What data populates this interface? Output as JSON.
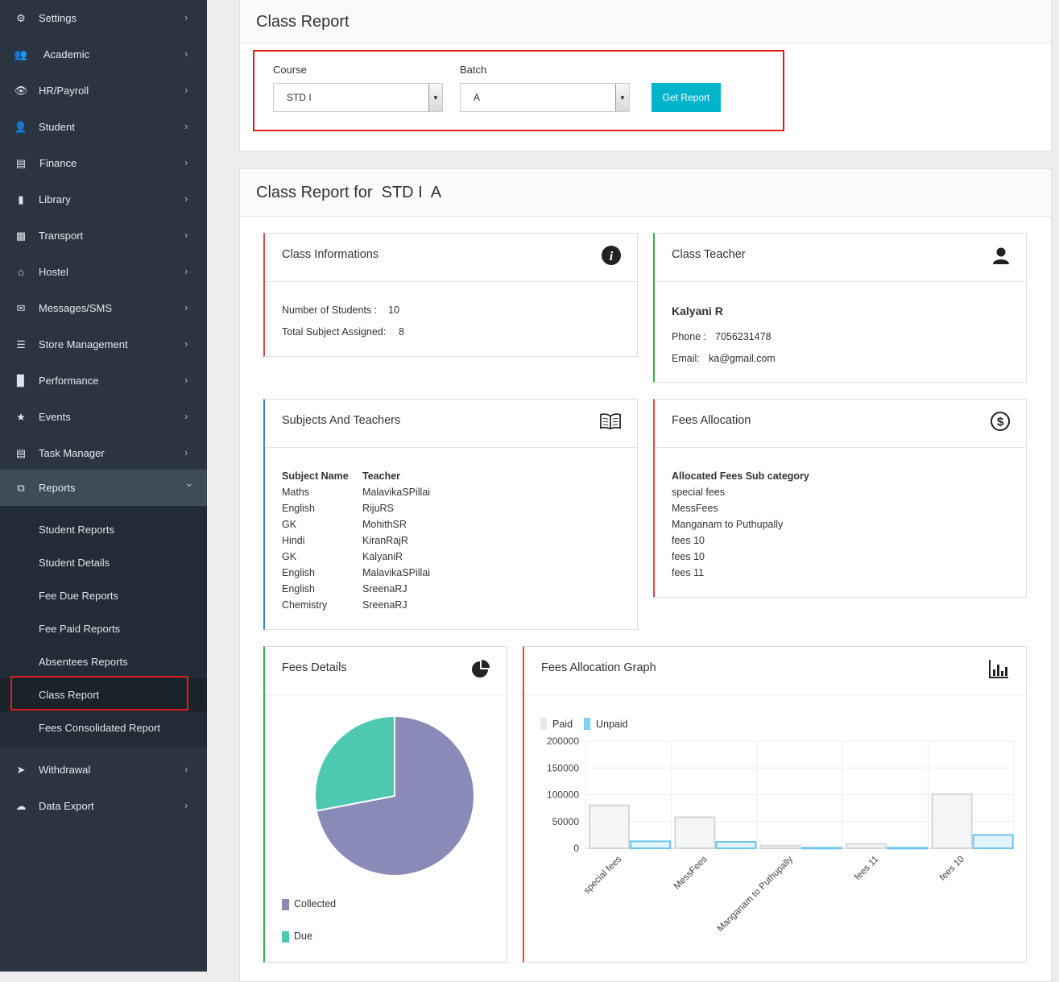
{
  "sidebar": {
    "items": [
      {
        "label": "Settings",
        "icon": "gears-icon"
      },
      {
        "label": "Academic",
        "icon": "users-icon"
      },
      {
        "label": "HR/Payroll",
        "icon": "eye-icon"
      },
      {
        "label": "Student",
        "icon": "user-icon"
      },
      {
        "label": "Finance",
        "icon": "money-icon"
      },
      {
        "label": "Library",
        "icon": "book-icon"
      },
      {
        "label": "Transport",
        "icon": "truck-icon"
      },
      {
        "label": "Hostel",
        "icon": "home-icon"
      },
      {
        "label": "Messages/SMS",
        "icon": "envelope-icon"
      },
      {
        "label": "Store Management",
        "icon": "list-icon"
      },
      {
        "label": "Performance",
        "icon": "bar-chart-icon"
      },
      {
        "label": "Events",
        "icon": "star-icon"
      },
      {
        "label": "Task Manager",
        "icon": "clipboard-icon"
      },
      {
        "label": "Reports",
        "icon": "copy-icon"
      },
      {
        "label": "Withdrawal",
        "icon": "paper-plane-icon"
      },
      {
        "label": "Data Export",
        "icon": "cloud-download-icon"
      }
    ],
    "reports_submenu": [
      "Student Reports",
      "Student Details",
      "Fee Due Reports",
      "Fee Paid Reports",
      "Absentees Reports",
      "Class Report",
      "Fees Consolidated Report"
    ],
    "active_item": "Reports",
    "active_subitem": "Class Report"
  },
  "filter": {
    "title": "Class Report",
    "course_label": "Course",
    "course_value": "STD I",
    "batch_label": "Batch",
    "batch_value": "A",
    "button_label": "Get Report"
  },
  "report": {
    "title": "Class Report for  STD I  A",
    "class_info": {
      "title": "Class Informations",
      "students_label": "Number of Students :",
      "students_value": "10",
      "subjects_label": "Total Subject Assigned:",
      "subjects_value": "8"
    },
    "class_teacher": {
      "title": "Class Teacher",
      "name": "Kalyani R",
      "phone_label": "Phone :",
      "phone_value": "7056231478",
      "email_label": "Email:",
      "email_value": "ka@gmail.com"
    },
    "subjects": {
      "title": "Subjects And Teachers",
      "col_subject": "Subject Name",
      "col_teacher": "Teacher",
      "rows": [
        [
          "Maths",
          "MalavikaSPillai"
        ],
        [
          "English",
          "RijuRS"
        ],
        [
          "GK",
          "MohithSR"
        ],
        [
          "Hindi",
          "KiranRajR"
        ],
        [
          "GK",
          "KalyaniR"
        ],
        [
          "English",
          "MalavikaSPillai"
        ],
        [
          "English",
          "SreenaRJ"
        ],
        [
          "Chemistry",
          "SreenaRJ"
        ]
      ]
    },
    "fees_allocation": {
      "title": "Fees Allocation",
      "header": "Allocated Fees Sub category",
      "items": [
        "special fees",
        "MessFees",
        "Manganam to Puthupally",
        "fees 10",
        "fees 10",
        "fees 11"
      ]
    },
    "fees_details": {
      "title": "Fees Details",
      "legend": [
        "Collected",
        "Due"
      ]
    },
    "fees_graph": {
      "title": "Fees Allocation Graph"
    }
  },
  "colors": {
    "sidebar_bg": "#2a3541",
    "accent_button": "#00b4cc",
    "highlight_red": "#e31b1b",
    "collected": "#8a8ab8",
    "due": "#4cc9b0",
    "paid_bar": "#e6e8ec",
    "unpaid_bar": "#7fd0f2"
  },
  "chart_data": [
    {
      "type": "pie",
      "labels": [
        "Collected",
        "Due"
      ],
      "values": [
        72,
        28
      ],
      "colors": [
        "#8a8ab8",
        "#4cc9b0"
      ],
      "legend": "bottom-left"
    },
    {
      "type": "bar",
      "categories": [
        "special fees",
        "MessFees",
        "Manganam to Puthupally",
        "fees 11",
        "fees 10"
      ],
      "series": [
        {
          "name": "Paid",
          "values": [
            80000,
            58000,
            5000,
            8000,
            101000
          ]
        },
        {
          "name": "Unpaid",
          "values": [
            13000,
            12000,
            1000,
            1000,
            25000
          ]
        }
      ],
      "ylim": [
        0,
        200000
      ],
      "yticks": [
        "0",
        "50000",
        "100000",
        "150000",
        "200000"
      ],
      "legend": "top-left",
      "grid": true
    }
  ]
}
